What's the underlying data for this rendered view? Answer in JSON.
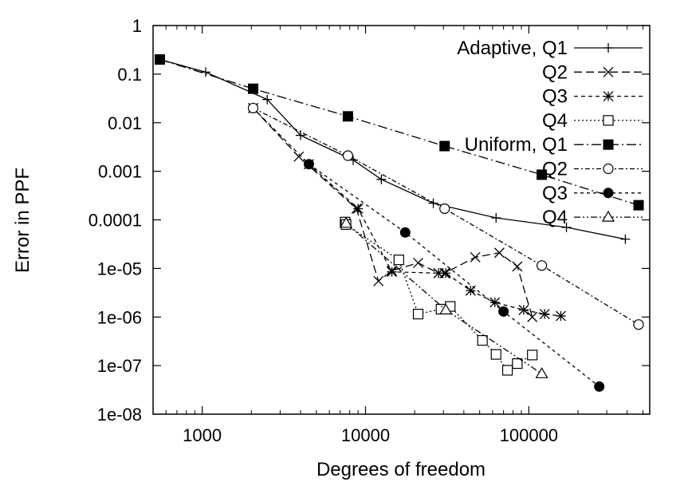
{
  "chart_data": {
    "type": "line",
    "xlabel": "Degrees of freedom",
    "ylabel": "Error in PPF",
    "xscale": "log",
    "yscale": "log",
    "xlim": [
      500,
      550000
    ],
    "ylim": [
      1e-08,
      1
    ],
    "grid": false,
    "legend_position": "top-right",
    "x_tick_labels": [
      "1000",
      "10000",
      "100000"
    ],
    "x_tick_values": [
      1000,
      10000,
      100000
    ],
    "y_tick_labels": [
      "1",
      "0.1",
      "0.01",
      "0.001",
      "0.0001",
      "1e-05",
      "1e-06",
      "1e-07",
      "1e-08"
    ],
    "y_tick_values": [
      1,
      0.1,
      0.01,
      0.001,
      0.0001,
      1e-05,
      1e-06,
      1e-07,
      1e-08
    ],
    "legend_labels": [
      "Adaptive, Q1",
      "Q2",
      "Q3",
      "Q4",
      "Uniform, Q1",
      "Q2",
      "Q3",
      "Q4"
    ],
    "series": [
      {
        "name": "Adaptive, Q1",
        "marker": "plus",
        "dash": "",
        "x": [
          550,
          1050,
          2500,
          4000,
          8400,
          12500,
          26000,
          63000,
          170000,
          390000
        ],
        "y": [
          0.2,
          0.11,
          0.03,
          0.0055,
          0.0017,
          0.00068,
          0.00022,
          0.00011,
          7e-05,
          4e-05
        ]
      },
      {
        "name": "Q2",
        "marker": "x",
        "dash": "10,5",
        "x": [
          2050,
          3900,
          8800,
          12000,
          14500,
          21000,
          28000,
          30500,
          47000,
          66000,
          85000,
          105000
        ],
        "y": [
          0.02,
          0.002,
          0.00017,
          5.5e-06,
          9e-06,
          1.3e-05,
          8e-06,
          8e-06,
          1.7e-05,
          2.1e-05,
          1.1e-05,
          1e-06
        ]
      },
      {
        "name": "Q3",
        "marker": "asterisk",
        "dash": "5,4",
        "x": [
          2050,
          4500,
          9000,
          14500,
          28000,
          31000,
          44000,
          62000,
          93000,
          125000,
          157000
        ],
        "y": [
          0.02,
          0.0014,
          0.00017,
          8.5e-06,
          8e-06,
          8e-06,
          3.5e-06,
          2e-06,
          1.4e-06,
          1.15e-06,
          1.05e-06
        ]
      },
      {
        "name": "Q4",
        "marker": "square-open",
        "dash": "2,3",
        "x": [
          7500,
          7600,
          16000,
          21000,
          29000,
          33000,
          52000,
          63000,
          74000,
          85000,
          105000
        ],
        "y": [
          9e-05,
          8e-05,
          1.5e-05,
          1.15e-06,
          1.45e-06,
          1.65e-06,
          3.3e-07,
          1.7e-07,
          8e-08,
          1.1e-07,
          1.65e-07
        ]
      },
      {
        "name": "Uniform, Q1",
        "marker": "square-filled",
        "dash": "12,4,2,4",
        "x": [
          550,
          2050,
          7800,
          30500,
          120000,
          470000
        ],
        "y": [
          0.2,
          0.05,
          0.0135,
          0.0033,
          0.00085,
          0.0002
        ]
      },
      {
        "name": "Q2",
        "marker": "circle-open",
        "dash": "6,3,2,3",
        "x": [
          2050,
          7800,
          30500,
          120000,
          470000
        ],
        "y": [
          0.02,
          0.0021,
          0.00017,
          1.15e-05,
          7e-07
        ]
      },
      {
        "name": "Q3",
        "marker": "circle-filled",
        "dash": "4,4",
        "x": [
          4500,
          17500,
          70000,
          270000
        ],
        "y": [
          0.0014,
          5.5e-05,
          1.3e-06,
          3.7e-08
        ]
      },
      {
        "name": "Q4",
        "marker": "triangle-open",
        "dash": "8,3,2,3,2,3",
        "x": [
          7600,
          31000,
          120000
        ],
        "y": [
          8.5e-05,
          1.4e-06,
          6.8e-08
        ]
      }
    ]
  }
}
